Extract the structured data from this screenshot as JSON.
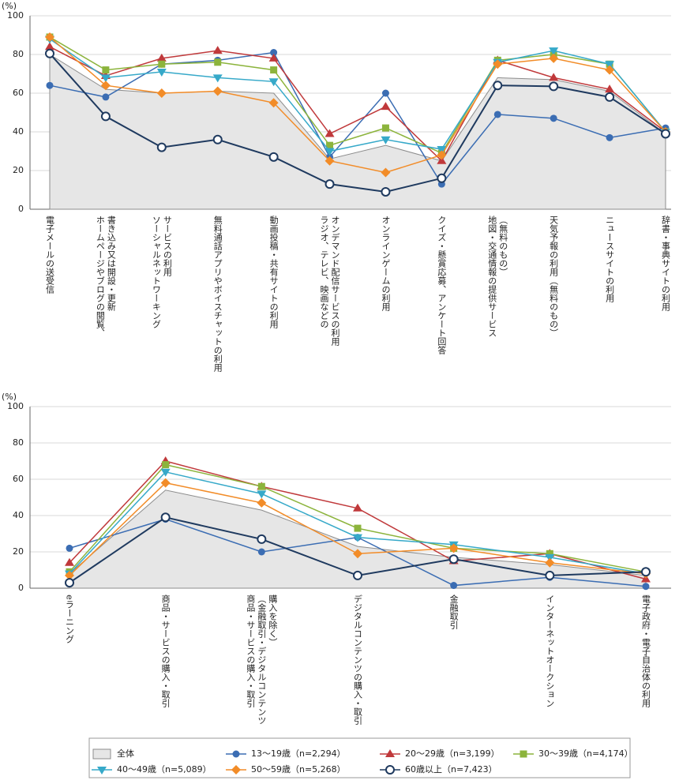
{
  "chart_data": [
    {
      "type": "line",
      "y_unit": "(%)",
      "categories": [
        "電子メールの送受信",
        "ホームページやブログの閲覧、\n書き込み又は開設・更新",
        "ソーシャルネットワーキング\nサービスの利用",
        "無料通話アプリやボイスチャットの利用",
        "動画投稿・共有サイトの利用",
        "ラジオ、テレビ、映画などの\nオンデマンド配信サービスの利用",
        "オンラインゲームの利用",
        "クイズ・懸賞応募、アンケート回答",
        "地図・交通情報の提供サービス\n（無料のもの）",
        "天気予報の利用（無料のもの）",
        "ニュースサイトの利用",
        "辞書・事典サイトの利用"
      ],
      "ylim": [
        0,
        100
      ],
      "yticks": [
        0,
        20,
        40,
        60,
        80,
        100
      ],
      "grid": true,
      "series": [
        {
          "name": "全体",
          "style": "area",
          "color": "#8c8c8c",
          "fill": "#e6e6e6",
          "values": [
            80,
            62,
            60,
            61,
            60,
            26,
            33,
            25,
            68,
            67,
            61,
            39
          ]
        },
        {
          "name": "13～19歳（n=2,294）",
          "color": "#3b6db3",
          "marker": "circle",
          "values": [
            64,
            58,
            75,
            77,
            81,
            27,
            60,
            13,
            49,
            47,
            37,
            42
          ]
        },
        {
          "name": "20～29歳（n=3,199）",
          "color": "#c0393b",
          "marker": "triangle-up",
          "values": [
            84,
            69,
            78,
            82,
            78,
            39,
            53,
            25,
            77,
            68,
            62,
            40
          ]
        },
        {
          "name": "30～39歳（n=4,174）",
          "color": "#8cb43c",
          "marker": "square",
          "values": [
            89,
            72,
            75,
            76,
            72,
            33,
            42,
            29,
            77,
            80,
            75,
            40
          ]
        },
        {
          "name": "40～49歳（n=5,089）",
          "color": "#36a9c9",
          "marker": "triangle-down",
          "values": [
            88,
            68,
            71,
            68,
            66,
            30,
            36,
            31,
            76,
            82,
            75,
            40
          ]
        },
        {
          "name": "50～59歳（n=5,268）",
          "color": "#f28c28",
          "marker": "diamond",
          "values": [
            89,
            64,
            60,
            61,
            55,
            25,
            19,
            28,
            75,
            78,
            72,
            40
          ]
        },
        {
          "name": "60歳以上（n=7,423）",
          "color": "#1f3a5f",
          "marker": "circle-open",
          "values": [
            80.5,
            48,
            32,
            36,
            27,
            13,
            9,
            16,
            64,
            63.5,
            58,
            39
          ]
        }
      ]
    },
    {
      "type": "line",
      "y_unit": "(%)",
      "categories": [
        "eラーニング",
        "商品・サービスの購入・取引",
        "商品・サービスの購入・取引\n（金融取引・デジタルコンテンツ\n購入を除く）",
        "デジタルコンテンツの購入・取引",
        "金融取引",
        "インターネットオークション",
        "電子政府・電子自治体の利用"
      ],
      "ylim": [
        0,
        100
      ],
      "yticks": [
        0,
        20,
        40,
        60,
        80,
        100
      ],
      "grid": true,
      "series": [
        {
          "values": [
            8,
            54,
            43,
            23,
            17,
            13,
            7
          ]
        },
        {
          "values": [
            22,
            38,
            20,
            28,
            1.5,
            6,
            1
          ]
        },
        {
          "values": [
            14,
            70,
            56,
            44,
            15,
            19,
            5
          ]
        },
        {
          "values": [
            9,
            68,
            56,
            33,
            22,
            19,
            9
          ]
        },
        {
          "values": [
            8,
            64,
            52,
            28,
            24,
            17,
            8
          ]
        },
        {
          "values": [
            7,
            58,
            47,
            19,
            22,
            14,
            8
          ]
        },
        {
          "values": [
            3,
            39,
            27,
            7,
            16,
            7,
            9
          ]
        }
      ]
    }
  ]
}
